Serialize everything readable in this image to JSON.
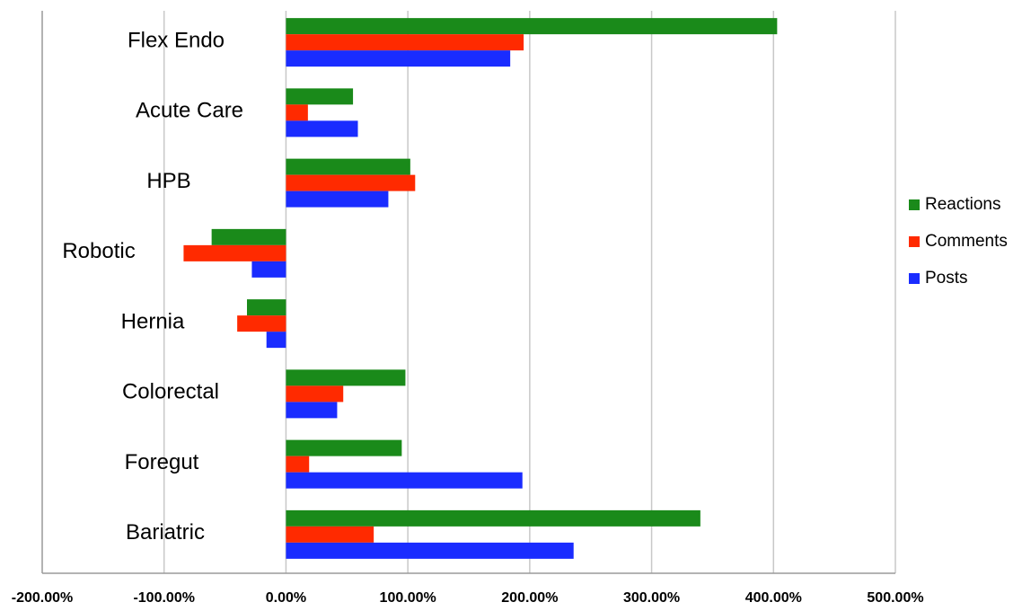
{
  "chart_data": {
    "type": "bar",
    "orientation": "horizontal",
    "categories": [
      "Flex Endo",
      "Acute Care",
      "HPB",
      "Robotic",
      "Hernia",
      "Colorectal",
      "Foregut",
      "Bariatric"
    ],
    "series": [
      {
        "name": "Reactions",
        "color": "#1a8a1a",
        "values": [
          403,
          55,
          102,
          -61,
          -32,
          98,
          95,
          340
        ]
      },
      {
        "name": "Comments",
        "color": "#ff2a00",
        "values": [
          195,
          18,
          106,
          -84,
          -40,
          47,
          19,
          72
        ]
      },
      {
        "name": "Posts",
        "color": "#1a2cff",
        "values": [
          184,
          59,
          84,
          -28,
          -16,
          42,
          194,
          236
        ]
      }
    ],
    "xlim": [
      -200,
      500
    ],
    "x_ticks": [
      -200,
      -100,
      0,
      100,
      200,
      300,
      400,
      500
    ],
    "x_tick_labels": [
      "-200.00%",
      "-100.00%",
      "0.00%",
      "100.00%",
      "200.00%",
      "300.00%",
      "400.00%",
      "500.00%"
    ],
    "grid": "vertical",
    "legend_position": "right",
    "title": "",
    "xlabel": "",
    "ylabel": ""
  }
}
